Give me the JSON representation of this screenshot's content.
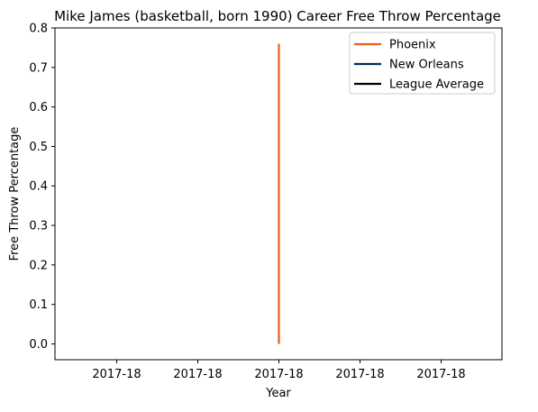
{
  "chart_data": {
    "type": "line",
    "title": "Mike James (basketball, born 1990) Career Free Throw Percentage",
    "xlabel": "Year",
    "ylabel": "Free Throw Percentage",
    "x_tick_labels": [
      "2017-18",
      "2017-18",
      "2017-18",
      "2017-18",
      "2017-18"
    ],
    "y_ticks": [
      "0.0",
      "0.1",
      "0.2",
      "0.3",
      "0.4",
      "0.5",
      "0.6",
      "0.7",
      "0.8"
    ],
    "ylim": [
      -0.04,
      0.8
    ],
    "grid": false,
    "legend_position": "top-right",
    "series": [
      {
        "name": "Phoenix",
        "color": "#e56020",
        "x": [
          "2017-18",
          "2017-18"
        ],
        "values": [
          0.0,
          0.76
        ]
      },
      {
        "name": "New Orleans",
        "color": "#002b5c",
        "x": [],
        "values": []
      },
      {
        "name": "League Average",
        "color": "#000000",
        "x": [],
        "values": []
      }
    ]
  }
}
